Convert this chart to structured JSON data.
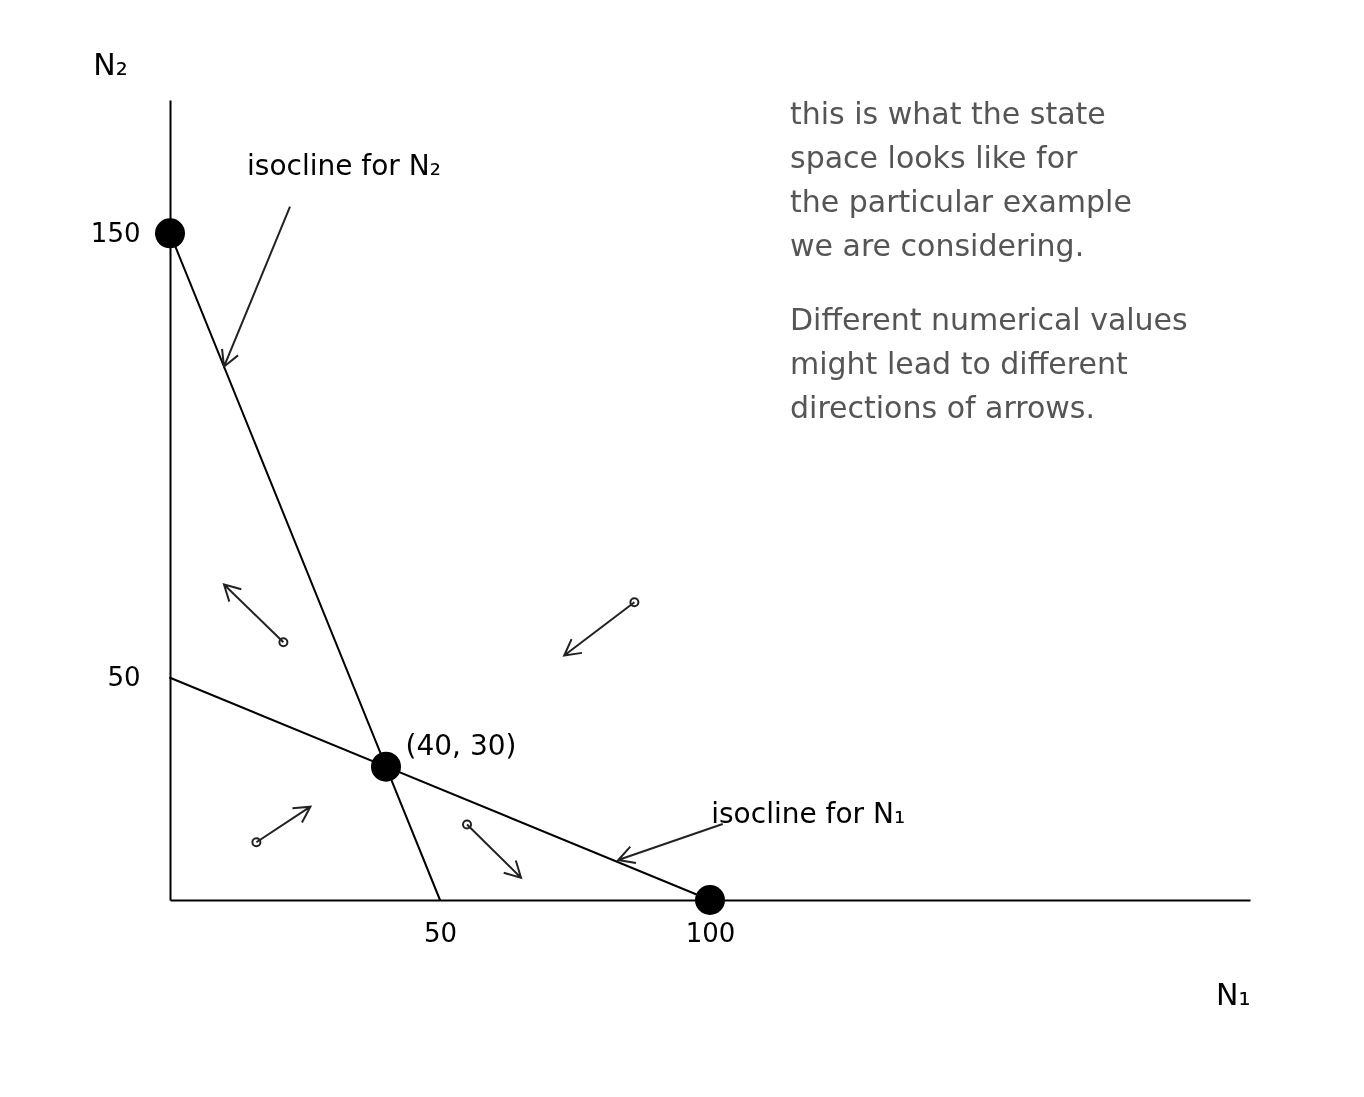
{
  "chart_data": {
    "type": "line",
    "xlabel": "N₁",
    "ylabel": "N₂",
    "xlim": [
      0,
      200
    ],
    "ylim": [
      0,
      180
    ],
    "xticks": [
      50,
      100
    ],
    "yticks": [
      50,
      150
    ],
    "grid": false,
    "series": [
      {
        "color": "#000000",
        "x": [
          0,
          50
        ],
        "values": [
          150,
          0
        ]
      },
      {
        "color": "#000000",
        "x": [
          0,
          100
        ],
        "values": [
          50,
          0
        ]
      },
      {
        "type": "scatter",
        "color": "#000000",
        "marker": "circle",
        "x": [
          0,
          40,
          100
        ],
        "values": [
          150,
          30,
          0
        ]
      }
    ],
    "annotations": [
      {
        "text": "isocline for N₂",
        "x": 10,
        "y": 120
      },
      {
        "text": "(40, 30)",
        "x": 40,
        "y": 30
      },
      {
        "text": "isocline for N₁",
        "x": 83,
        "y": 9
      },
      "this is what the state space looks like for the particular example we are considering.",
      "Different numerical values might lead to different directions of arrows."
    ]
  }
}
